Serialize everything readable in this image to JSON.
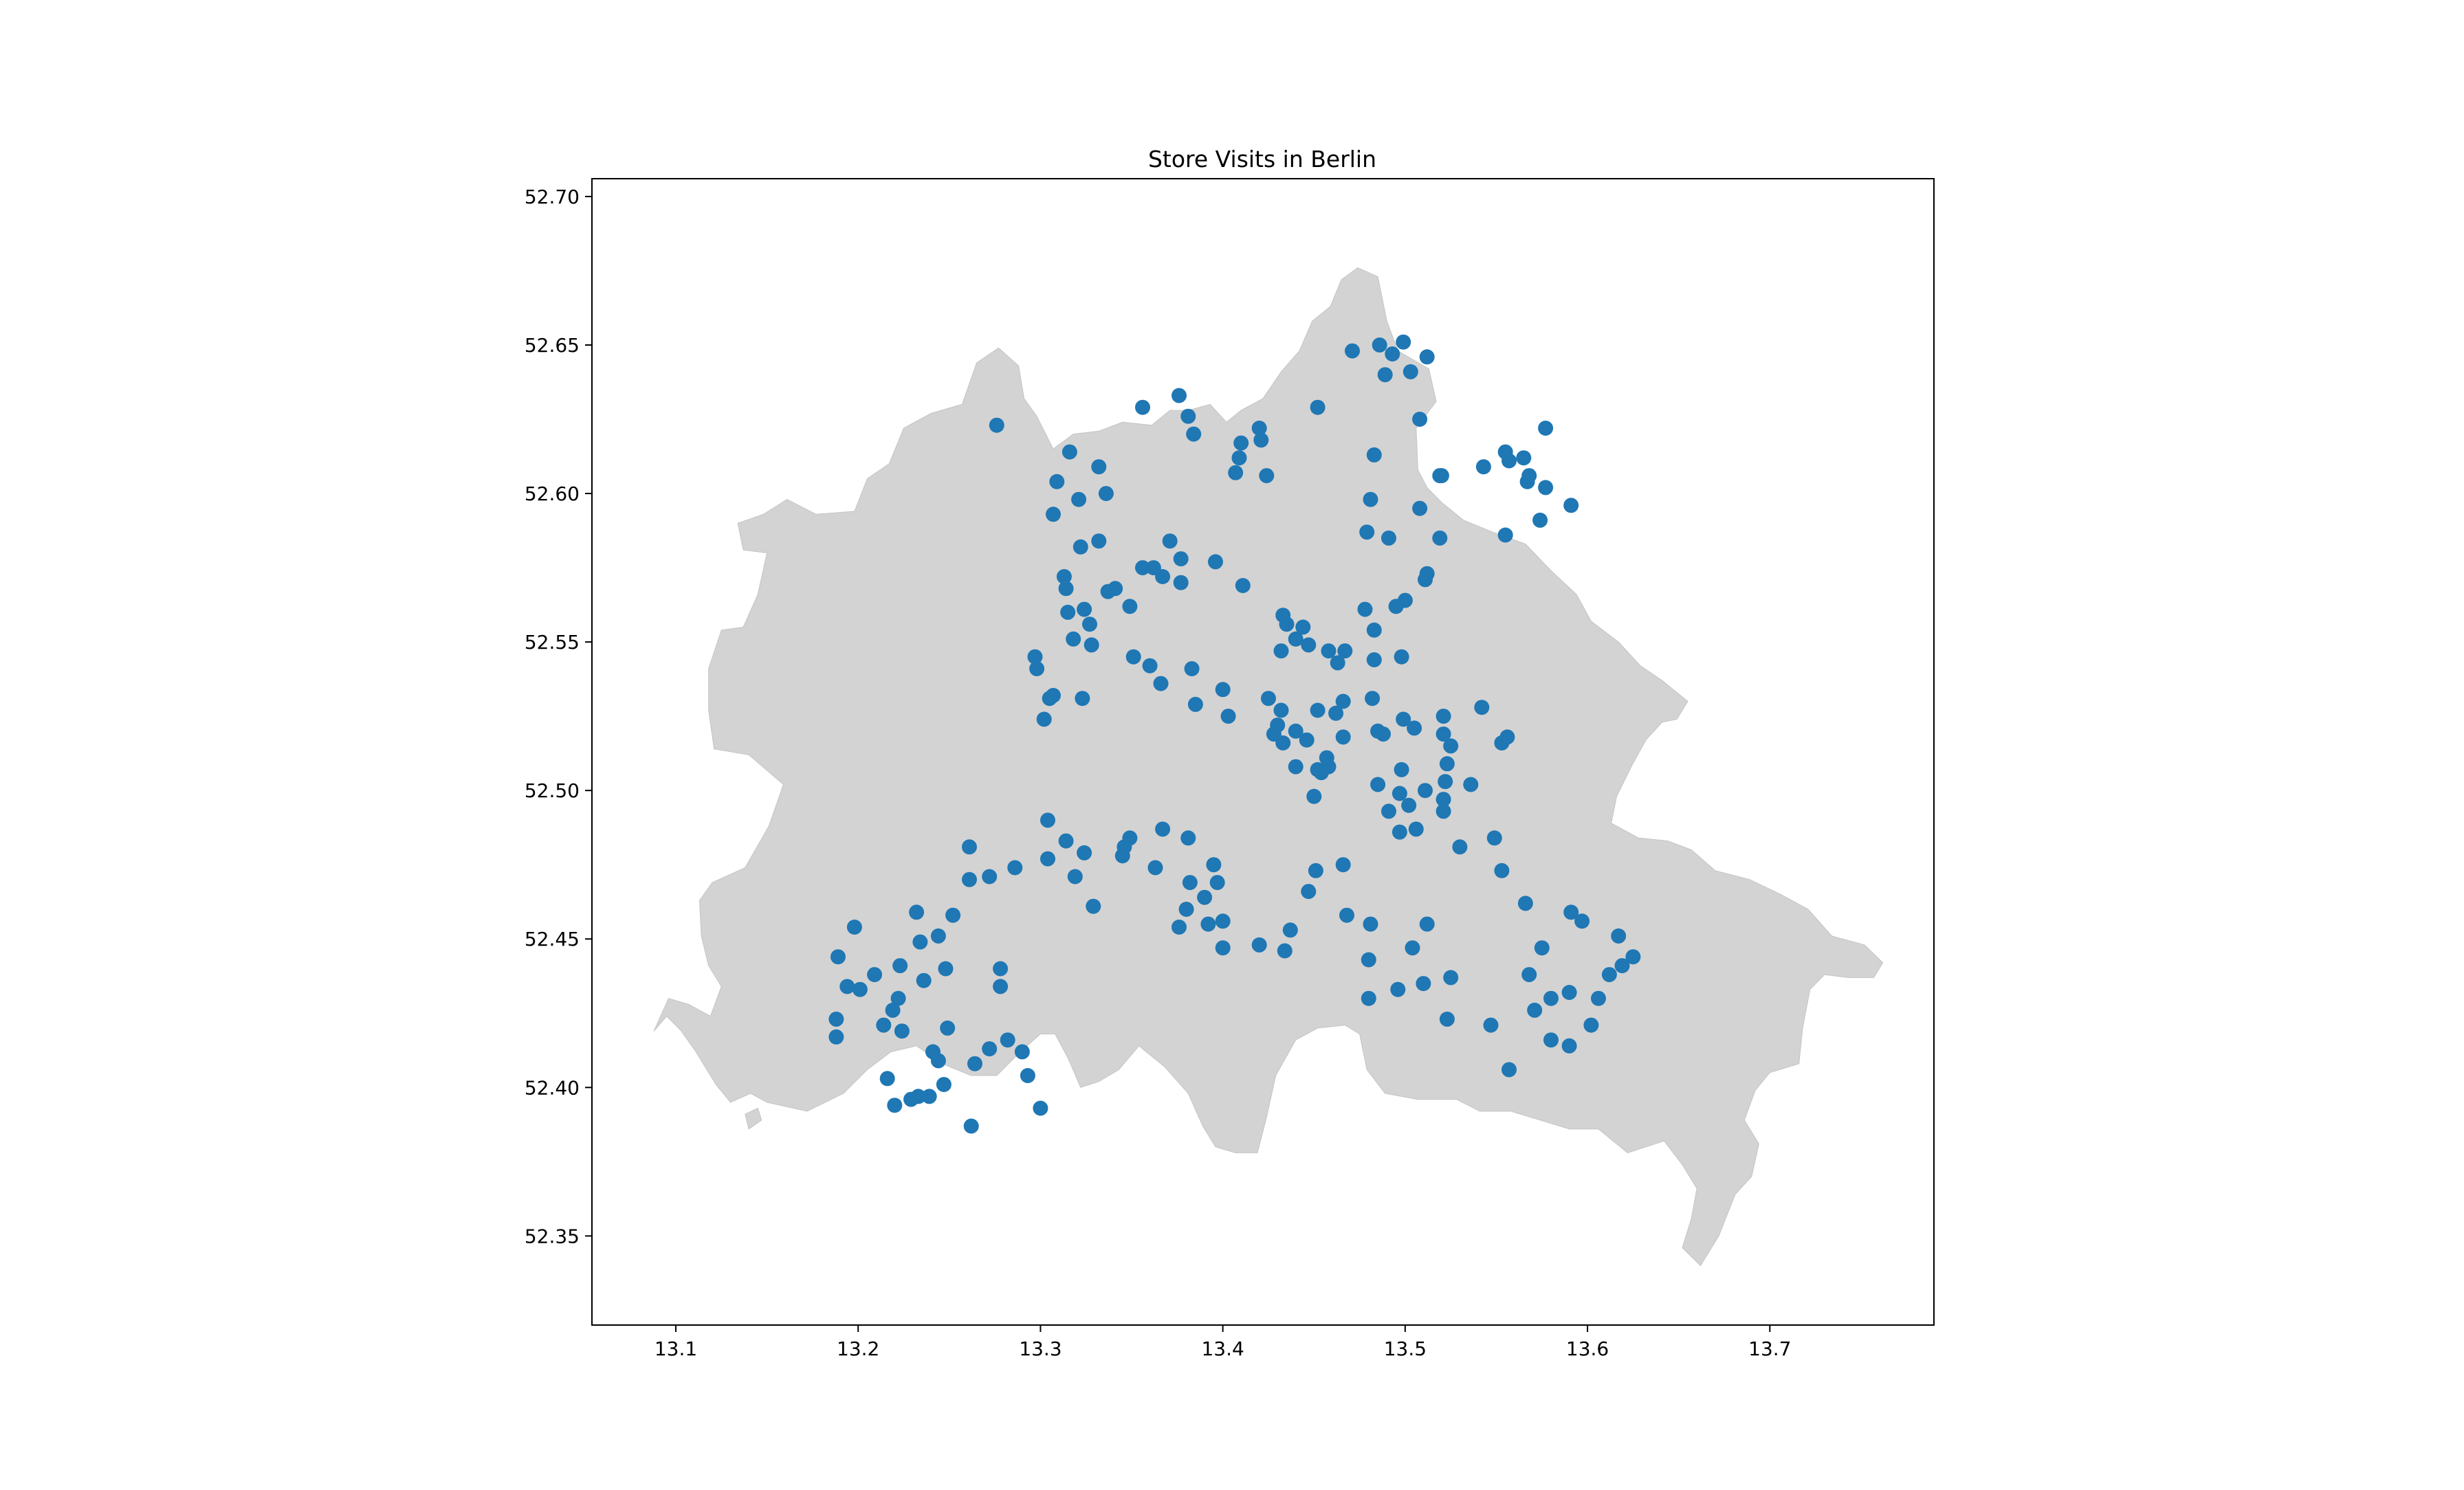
{
  "chart_data": {
    "type": "scatter",
    "title": "Store Visits in Berlin",
    "xlabel": "",
    "ylabel": "",
    "xlim": [
      13.054,
      13.79
    ],
    "ylim": [
      52.32,
      52.706
    ],
    "xticks": [
      13.1,
      13.2,
      13.3,
      13.4,
      13.5,
      13.6,
      13.7
    ],
    "xtick_labels": [
      "13.1",
      "13.2",
      "13.3",
      "13.4",
      "13.5",
      "13.6",
      "13.7"
    ],
    "yticks": [
      52.35,
      52.4,
      52.45,
      52.5,
      52.55,
      52.6,
      52.65,
      52.7
    ],
    "ytick_labels": [
      "52.35",
      "52.40",
      "52.45",
      "52.50",
      "52.55",
      "52.60",
      "52.65",
      "52.70"
    ],
    "grid": false,
    "colors": {
      "points": "#1f77b4",
      "map_fill": "#d3d3d3",
      "axes": "#000000"
    },
    "basemap": {
      "name": "Berlin boundary",
      "outline": [
        [
          13.088,
          52.419
        ],
        [
          13.095,
          52.424
        ],
        [
          13.103,
          52.419
        ],
        [
          13.111,
          52.412
        ],
        [
          13.115,
          52.408
        ],
        [
          13.122,
          52.401
        ],
        [
          13.13,
          52.395
        ],
        [
          13.141,
          52.398
        ],
        [
          13.15,
          52.395
        ],
        [
          13.172,
          52.392
        ],
        [
          13.192,
          52.398
        ],
        [
          13.205,
          52.406
        ],
        [
          13.218,
          52.412
        ],
        [
          13.232,
          52.414
        ],
        [
          13.246,
          52.408
        ],
        [
          13.262,
          52.404
        ],
        [
          13.276,
          52.404
        ],
        [
          13.289,
          52.412
        ],
        [
          13.3,
          52.418
        ],
        [
          13.308,
          52.418
        ],
        [
          13.315,
          52.41
        ],
        [
          13.322,
          52.4
        ],
        [
          13.332,
          52.402
        ],
        [
          13.343,
          52.406
        ],
        [
          13.354,
          52.414
        ],
        [
          13.368,
          52.407
        ],
        [
          13.381,
          52.398
        ],
        [
          13.389,
          52.387
        ],
        [
          13.396,
          52.38
        ],
        [
          13.407,
          52.378
        ],
        [
          13.419,
          52.378
        ],
        [
          13.424,
          52.39
        ],
        [
          13.429,
          52.404
        ],
        [
          13.44,
          52.416
        ],
        [
          13.452,
          52.42
        ],
        [
          13.467,
          52.421
        ],
        [
          13.475,
          52.418
        ],
        [
          13.479,
          52.406
        ],
        [
          13.489,
          52.398
        ],
        [
          13.507,
          52.396
        ],
        [
          13.528,
          52.396
        ],
        [
          13.541,
          52.392
        ],
        [
          13.558,
          52.392
        ],
        [
          13.574,
          52.389
        ],
        [
          13.59,
          52.386
        ],
        [
          13.606,
          52.386
        ],
        [
          13.622,
          52.378
        ],
        [
          13.642,
          52.382
        ],
        [
          13.652,
          52.374
        ],
        [
          13.66,
          52.366
        ],
        [
          13.657,
          52.356
        ],
        [
          13.652,
          52.346
        ],
        [
          13.662,
          52.34
        ],
        [
          13.672,
          52.35
        ],
        [
          13.681,
          52.364
        ],
        [
          13.69,
          52.37
        ],
        [
          13.694,
          52.381
        ],
        [
          13.686,
          52.389
        ],
        [
          13.692,
          52.399
        ],
        [
          13.7,
          52.405
        ],
        [
          13.716,
          52.408
        ],
        [
          13.718,
          52.42
        ],
        [
          13.722,
          52.433
        ],
        [
          13.73,
          52.438
        ],
        [
          13.743,
          52.437
        ],
        [
          13.757,
          52.437
        ],
        [
          13.762,
          52.442
        ],
        [
          13.752,
          52.448
        ],
        [
          13.734,
          52.451
        ],
        [
          13.721,
          52.46
        ],
        [
          13.706,
          52.465
        ],
        [
          13.689,
          52.47
        ],
        [
          13.67,
          52.473
        ],
        [
          13.657,
          52.48
        ],
        [
          13.644,
          52.483
        ],
        [
          13.628,
          52.484
        ],
        [
          13.613,
          52.489
        ],
        [
          13.616,
          52.498
        ],
        [
          13.624,
          52.508
        ],
        [
          13.632,
          52.517
        ],
        [
          13.641,
          52.523
        ],
        [
          13.649,
          52.524
        ],
        [
          13.655,
          52.53
        ],
        [
          13.641,
          52.537
        ],
        [
          13.629,
          52.542
        ],
        [
          13.617,
          52.55
        ],
        [
          13.602,
          52.557
        ],
        [
          13.594,
          52.566
        ],
        [
          13.58,
          52.574
        ],
        [
          13.566,
          52.583
        ],
        [
          13.548,
          52.587
        ],
        [
          13.532,
          52.591
        ],
        [
          13.52,
          52.597
        ],
        [
          13.512,
          52.602
        ],
        [
          13.507,
          52.608
        ],
        [
          13.506,
          52.622
        ],
        [
          13.517,
          52.631
        ],
        [
          13.513,
          52.642
        ],
        [
          13.496,
          52.648
        ],
        [
          13.49,
          52.658
        ],
        [
          13.485,
          52.673
        ],
        [
          13.474,
          52.676
        ],
        [
          13.465,
          52.672
        ],
        [
          13.459,
          52.663
        ],
        [
          13.449,
          52.658
        ],
        [
          13.442,
          52.648
        ],
        [
          13.432,
          52.641
        ],
        [
          13.422,
          52.632
        ],
        [
          13.41,
          52.628
        ],
        [
          13.402,
          52.624
        ],
        [
          13.393,
          52.63
        ],
        [
          13.381,
          52.628
        ],
        [
          13.371,
          52.628
        ],
        [
          13.361,
          52.623
        ],
        [
          13.345,
          52.624
        ],
        [
          13.332,
          52.621
        ],
        [
          13.318,
          52.62
        ],
        [
          13.307,
          52.615
        ],
        [
          13.298,
          52.626
        ],
        [
          13.291,
          52.632
        ],
        [
          13.288,
          52.643
        ],
        [
          13.277,
          52.649
        ],
        [
          13.265,
          52.644
        ],
        [
          13.257,
          52.63
        ],
        [
          13.24,
          52.627
        ],
        [
          13.225,
          52.622
        ],
        [
          13.217,
          52.61
        ],
        [
          13.205,
          52.605
        ],
        [
          13.198,
          52.594
        ],
        [
          13.177,
          52.593
        ],
        [
          13.161,
          52.598
        ],
        [
          13.148,
          52.593
        ],
        [
          13.134,
          52.59
        ],
        [
          13.137,
          52.581
        ],
        [
          13.15,
          52.58
        ],
        [
          13.145,
          52.566
        ],
        [
          13.137,
          52.555
        ],
        [
          13.125,
          52.554
        ],
        [
          13.118,
          52.541
        ],
        [
          13.118,
          52.527
        ],
        [
          13.121,
          52.514
        ],
        [
          13.14,
          52.512
        ],
        [
          13.159,
          52.502
        ],
        [
          13.151,
          52.488
        ],
        [
          13.138,
          52.474
        ],
        [
          13.12,
          52.469
        ],
        [
          13.113,
          52.463
        ],
        [
          13.114,
          52.451
        ],
        [
          13.118,
          52.441
        ],
        [
          13.125,
          52.434
        ],
        [
          13.119,
          52.424
        ],
        [
          13.107,
          52.428
        ],
        [
          13.096,
          52.43
        ]
      ],
      "islet": [
        [
          13.14,
          52.386
        ],
        [
          13.147,
          52.389
        ],
        [
          13.145,
          52.393
        ],
        [
          13.138,
          52.391
        ]
      ]
    },
    "points": {
      "x": [
        13.233,
        13.239,
        13.244,
        13.229,
        13.241,
        13.262,
        13.247,
        13.22,
        13.216,
        13.272,
        13.29,
        13.3,
        13.293,
        13.282,
        13.264,
        13.249,
        13.188,
        13.188,
        13.224,
        13.214,
        13.219,
        13.278,
        13.278,
        13.248,
        13.236,
        13.222,
        13.223,
        13.209,
        13.201,
        13.194,
        13.189,
        13.198,
        13.244,
        13.234,
        13.232,
        13.252,
        13.261,
        13.261,
        13.272,
        13.286,
        13.304,
        13.304,
        13.314,
        13.319,
        13.324,
        13.329,
        13.345,
        13.363,
        13.349,
        13.346,
        13.367,
        13.381,
        13.382,
        13.395,
        13.39,
        13.38,
        13.376,
        13.392,
        13.397,
        13.4,
        13.4,
        13.42,
        13.434,
        13.437,
        13.447,
        13.451,
        13.466,
        13.468,
        13.481,
        13.48,
        13.48,
        13.496,
        13.504,
        13.512,
        13.51,
        13.525,
        13.523,
        13.547,
        13.557,
        13.571,
        13.568,
        13.575,
        13.58,
        13.58,
        13.59,
        13.59,
        13.602,
        13.606,
        13.612,
        13.617,
        13.619,
        13.625,
        13.597,
        13.591,
        13.566,
        13.553,
        13.549,
        13.53,
        13.506,
        13.491,
        13.497,
        13.497,
        13.521,
        13.536,
        13.523,
        13.521,
        13.511,
        13.502,
        13.485,
        13.458,
        13.454,
        13.45,
        13.452,
        13.44,
        13.446,
        13.466,
        13.457,
        13.43,
        13.425,
        13.432,
        13.44,
        13.458,
        13.463,
        13.483,
        13.498,
        13.482,
        13.499,
        13.505,
        13.521,
        13.521,
        13.542,
        13.556,
        13.553,
        13.525,
        13.522,
        13.498,
        13.485,
        13.488,
        13.466,
        13.462,
        13.452,
        13.44,
        13.433,
        13.432,
        13.428,
        13.403,
        13.4,
        13.383,
        13.385,
        13.366,
        13.36,
        13.351,
        13.328,
        13.323,
        13.307,
        13.305,
        13.302,
        13.298,
        13.297,
        13.318,
        13.327,
        13.324,
        13.314,
        13.313,
        13.315,
        13.337,
        13.341,
        13.349,
        13.356,
        13.367,
        13.362,
        13.377,
        13.377,
        13.396,
        13.411,
        13.433,
        13.435,
        13.444,
        13.447,
        13.467,
        13.483,
        13.478,
        13.495,
        13.511,
        13.5,
        13.512,
        13.519,
        13.491,
        13.479,
        13.481,
        13.508,
        13.483,
        13.52,
        13.519,
        13.543,
        13.557,
        13.567,
        13.574,
        13.591,
        13.555,
        13.568,
        13.577,
        13.565,
        13.577,
        13.555,
        13.508,
        13.503,
        13.512,
        13.486,
        13.471,
        13.499,
        13.493,
        13.489,
        13.452,
        13.421,
        13.42,
        13.424,
        13.407,
        13.409,
        13.41,
        13.384,
        13.376,
        13.381,
        13.356,
        13.332,
        13.336,
        13.371,
        13.332,
        13.321,
        13.322,
        13.307,
        13.309,
        13.316,
        13.276
      ],
      "y": [
        52.397,
        52.397,
        52.409,
        52.396,
        52.412,
        52.387,
        52.401,
        52.394,
        52.403,
        52.413,
        52.412,
        52.393,
        52.404,
        52.416,
        52.408,
        52.42,
        52.423,
        52.417,
        52.419,
        52.421,
        52.426,
        52.44,
        52.434,
        52.44,
        52.436,
        52.43,
        52.441,
        52.438,
        52.433,
        52.434,
        52.444,
        52.454,
        52.451,
        52.449,
        52.459,
        52.458,
        52.47,
        52.481,
        52.471,
        52.474,
        52.477,
        52.49,
        52.483,
        52.471,
        52.479,
        52.461,
        52.478,
        52.474,
        52.484,
        52.481,
        52.487,
        52.484,
        52.469,
        52.475,
        52.464,
        52.46,
        52.454,
        52.455,
        52.469,
        52.456,
        52.447,
        52.448,
        52.446,
        52.453,
        52.466,
        52.473,
        52.475,
        52.458,
        52.455,
        52.443,
        52.43,
        52.433,
        52.447,
        52.455,
        52.435,
        52.437,
        52.423,
        52.421,
        52.406,
        52.426,
        52.438,
        52.447,
        52.43,
        52.416,
        52.414,
        52.432,
        52.421,
        52.43,
        52.438,
        52.451,
        52.441,
        52.444,
        52.456,
        52.459,
        52.462,
        52.473,
        52.484,
        52.481,
        52.487,
        52.493,
        52.499,
        52.486,
        52.493,
        52.502,
        52.509,
        52.497,
        52.5,
        52.495,
        52.502,
        52.508,
        52.506,
        52.498,
        52.507,
        52.508,
        52.517,
        52.518,
        52.511,
        52.522,
        52.531,
        52.547,
        52.551,
        52.547,
        52.543,
        52.544,
        52.545,
        52.531,
        52.524,
        52.521,
        52.519,
        52.525,
        52.528,
        52.518,
        52.516,
        52.515,
        52.503,
        52.507,
        52.52,
        52.519,
        52.53,
        52.526,
        52.527,
        52.52,
        52.516,
        52.527,
        52.519,
        52.525,
        52.534,
        52.541,
        52.529,
        52.536,
        52.542,
        52.545,
        52.549,
        52.531,
        52.532,
        52.531,
        52.524,
        52.541,
        52.545,
        52.551,
        52.556,
        52.561,
        52.568,
        52.572,
        52.56,
        52.567,
        52.568,
        52.562,
        52.575,
        52.572,
        52.575,
        52.578,
        52.57,
        52.577,
        52.569,
        52.559,
        52.556,
        52.555,
        52.549,
        52.547,
        52.554,
        52.561,
        52.562,
        52.571,
        52.564,
        52.573,
        52.585,
        52.585,
        52.587,
        52.598,
        52.595,
        52.613,
        52.606,
        52.606,
        52.609,
        52.611,
        52.604,
        52.591,
        52.596,
        52.586,
        52.606,
        52.602,
        52.612,
        52.622,
        52.614,
        52.625,
        52.641,
        52.646,
        52.65,
        52.648,
        52.651,
        52.647,
        52.64,
        52.629,
        52.618,
        52.622,
        52.606,
        52.607,
        52.612,
        52.617,
        52.62,
        52.633,
        52.626,
        52.629,
        52.609,
        52.6,
        52.584,
        52.584,
        52.598,
        52.582,
        52.593,
        52.604,
        52.614,
        52.623
      ]
    }
  }
}
